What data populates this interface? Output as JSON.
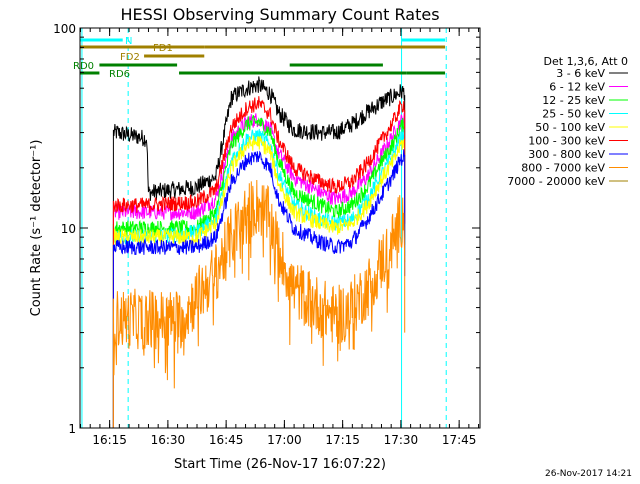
{
  "chart_data": {
    "type": "line",
    "title": "HESSI Observing Summary Count Rates",
    "xlabel": "Start Time (26-Nov-17 16:07:22)",
    "ylabel": "Count Rate (s⁻¹ detector⁻¹)",
    "yscale": "log",
    "ylim": [
      1,
      100
    ],
    "xlim_minutes": [
      0,
      103
    ],
    "x_tick_labels": [
      "16:15",
      "16:30",
      "16:45",
      "17:00",
      "17:15",
      "17:30",
      "17:45"
    ],
    "x_tick_minutes": [
      7.63,
      22.63,
      37.63,
      52.63,
      67.63,
      82.63,
      97.63
    ],
    "y_tick_labels": [
      "1",
      "10",
      "100"
    ],
    "y_tick_values": [
      1,
      10,
      100
    ],
    "legend_title": "Det 1,3,6, Att 0",
    "legend_position": "right",
    "series": [
      {
        "name": "3 - 6 keV",
        "color": "#000000",
        "x": [
          8.6,
          9.4,
          17.2,
          17.6,
          30,
          35,
          39,
          43,
          46,
          49,
          51,
          55,
          62,
          66,
          70,
          74,
          78,
          81,
          82.5,
          83.6
        ],
        "values": [
          30,
          30,
          28,
          15,
          16,
          18,
          45,
          50,
          52,
          47,
          38,
          31,
          30,
          30,
          33,
          38,
          43,
          46,
          48,
          48
        ]
      },
      {
        "name": "6 - 12 keV",
        "color": "#ff00ff",
        "x": [
          8.6,
          17.6,
          30,
          35,
          39,
          43,
          46,
          49,
          51,
          55,
          62,
          66,
          70,
          74,
          78,
          81,
          82.5,
          83.6
        ],
        "values": [
          12,
          12,
          12,
          14,
          28,
          34,
          35,
          31,
          24,
          18,
          15,
          14,
          15,
          18,
          24,
          30,
          34,
          35
        ]
      },
      {
        "name": "12 - 25 keV",
        "color": "#00ff00",
        "x": [
          8.6,
          17.6,
          30,
          35,
          39,
          43,
          46,
          49,
          51,
          55,
          62,
          66,
          70,
          74,
          78,
          81,
          82.5,
          83.6
        ],
        "values": [
          10,
          10,
          10,
          12,
          26,
          33,
          34,
          30,
          22,
          15,
          13,
          12,
          13,
          16,
          22,
          27,
          32,
          33
        ]
      },
      {
        "name": "25 - 50 keV",
        "color": "#00ffff",
        "x": [
          8.6,
          17.6,
          30,
          35,
          39,
          43,
          46,
          49,
          51,
          55,
          62,
          66,
          70,
          74,
          78,
          81,
          82.5,
          83.6
        ],
        "values": [
          9,
          9,
          9.5,
          11,
          22,
          28,
          29,
          26,
          19,
          13,
          11,
          10.5,
          11,
          14,
          19,
          24,
          28,
          29
        ]
      },
      {
        "name": "50 - 100 keV",
        "color": "#ffff00",
        "x": [
          8.6,
          17.6,
          30,
          35,
          39,
          43,
          46,
          49,
          51,
          55,
          62,
          66,
          70,
          74,
          78,
          81,
          82.5,
          83.6
        ],
        "values": [
          9,
          9,
          9,
          10.5,
          20,
          26,
          27,
          24,
          17,
          12,
          10.5,
          10,
          10.5,
          13,
          18,
          22,
          26,
          27
        ]
      },
      {
        "name": "100 - 300 keV",
        "color": "#ff0000",
        "x": [
          8.6,
          17.6,
          30,
          35,
          39,
          43,
          46,
          49,
          51,
          55,
          62,
          66,
          70,
          74,
          78,
          81,
          82.5,
          83.6
        ],
        "values": [
          13,
          13,
          13.5,
          15.5,
          32,
          40,
          42,
          37,
          28,
          20,
          17,
          16,
          17,
          21,
          28,
          35,
          40,
          42
        ]
      },
      {
        "name": "300 - 800 keV",
        "color": "#0000ff",
        "x": [
          8.6,
          17.6,
          30,
          35,
          39,
          43,
          46,
          49,
          51,
          55,
          62,
          66,
          70,
          74,
          78,
          81,
          82.5,
          83.6
        ],
        "values": [
          8,
          8,
          8,
          9,
          17,
          22,
          23,
          20,
          14,
          10,
          8.5,
          8,
          8.5,
          11,
          15,
          19,
          22,
          23
        ]
      },
      {
        "name": "800 - 7000 keV",
        "color": "#ff8c00",
        "x": [
          8.6,
          17.6,
          26,
          30,
          35,
          39,
          43,
          46,
          49,
          51,
          55,
          62,
          66,
          70,
          74,
          78,
          81,
          82.5,
          83.6
        ],
        "values": [
          3.5,
          3.5,
          3.5,
          4.5,
          6,
          9,
          12,
          13,
          11,
          8,
          5,
          4,
          3.6,
          4,
          5,
          7,
          9,
          11,
          12
        ]
      },
      {
        "name": "7000 - 20000 keV",
        "color": "#a08000",
        "x": [],
        "values": []
      }
    ],
    "status_bars": [
      {
        "label": "N",
        "color": "#00ffff",
        "segments": [
          [
            0,
            11
          ],
          [
            82.8,
            94
          ]
        ]
      },
      {
        "label": "FD1",
        "color": "#a08000",
        "segments": [
          [
            0,
            32
          ],
          [
            32,
            94
          ]
        ]
      },
      {
        "label": "FD2",
        "color": "#a08000",
        "segments": [
          [
            16.5,
            32
          ]
        ]
      },
      {
        "label": "RD0",
        "color": "#008000",
        "segments": [
          [
            5,
            25
          ],
          [
            54,
            78
          ]
        ]
      },
      {
        "label": "RD6",
        "color": "#008000",
        "segments": [
          [
            0,
            5
          ],
          [
            25.5,
            84
          ],
          [
            84,
            94
          ]
        ]
      }
    ],
    "vertical_markers": [
      {
        "x": 0.5,
        "style": "solid",
        "color": "#00ffff"
      },
      {
        "x": 12.4,
        "style": "dashed",
        "color": "#00ffff"
      },
      {
        "x": 82.8,
        "style": "solid",
        "color": "#00ffff"
      },
      {
        "x": 94.3,
        "style": "dashed",
        "color": "#00ffff"
      }
    ]
  },
  "footer": {
    "timestamp": "26-Nov-2017 14:21"
  }
}
